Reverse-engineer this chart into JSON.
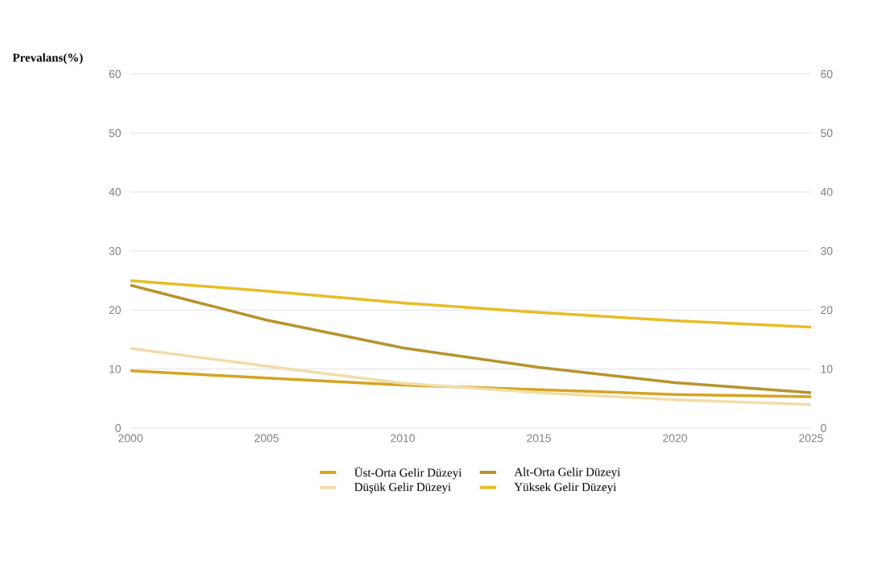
{
  "chart_data": {
    "type": "line",
    "ylabel": "Prevalans(%)",
    "x": [
      2000,
      2005,
      2010,
      2015,
      2020,
      2025
    ],
    "xlim": [
      2000,
      2025
    ],
    "xticks": [
      2000,
      2005,
      2010,
      2015,
      2020,
      2025
    ],
    "ylim": [
      0,
      60
    ],
    "yticks": [
      0,
      10,
      20,
      30,
      40,
      50,
      60
    ],
    "y2lim": [
      0,
      60
    ],
    "y2ticks": [
      0,
      10,
      20,
      30,
      40,
      50,
      60
    ],
    "grid": "y",
    "legend": "bottom",
    "marker": "none",
    "line_style": "solid",
    "series": [
      {
        "name": "Üst-Orta Gelir Düzeyi",
        "color": "#d4a422",
        "values": [
          9.7,
          8.5,
          7.3,
          6.5,
          5.7,
          5.3
        ]
      },
      {
        "name": "Alt-Orta Gelir Düzeyi",
        "color": "#b8922c",
        "values": [
          24.2,
          18.3,
          13.6,
          10.3,
          7.7,
          6.0
        ]
      },
      {
        "name": "Düşük Gelir Düzeyi",
        "color": "#f2dcaa",
        "values": [
          13.5,
          10.5,
          7.6,
          6.0,
          4.8,
          4.0
        ]
      },
      {
        "name": "Yüksek Gelir Düzeyi",
        "color": "#e8bc26",
        "values": [
          25.0,
          23.2,
          21.2,
          19.6,
          18.2,
          17.1
        ]
      }
    ]
  }
}
